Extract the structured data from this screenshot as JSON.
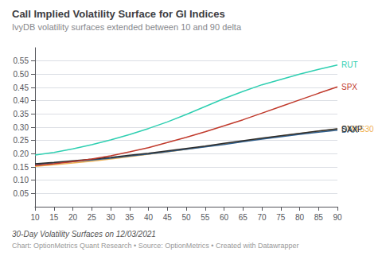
{
  "chart_data": {
    "type": "line",
    "title": "Call Implied Volatility Surface for GI Indices",
    "subtitle": "IvyDB volatility surfaces extended between 10 and 90 delta",
    "notes": [
      "30-Day Volatility Surfaces on 12/03/2021",
      "Chart: OptionMetrics Quant Research • Source: OptionMetrics • Created with Datawrapper"
    ],
    "x": [
      10,
      15,
      20,
      25,
      30,
      35,
      40,
      45,
      50,
      55,
      60,
      65,
      70,
      75,
      80,
      85,
      90
    ],
    "series": [
      {
        "name": "OMXS30",
        "color": "#f0b050",
        "values": [
          0.152,
          0.158,
          0.165,
          0.172,
          0.18,
          0.189,
          0.198,
          0.207,
          0.217,
          0.227,
          0.237,
          0.247,
          0.257,
          0.267,
          0.276,
          0.285,
          0.293
        ]
      },
      {
        "name": "DAX",
        "color": "#2e5e8e",
        "values": [
          0.16,
          0.165,
          0.17,
          0.176,
          0.183,
          0.191,
          0.199,
          0.208,
          0.217,
          0.226,
          0.235,
          0.245,
          0.255,
          0.264,
          0.273,
          0.281,
          0.289
        ]
      },
      {
        "name": "SXXP",
        "color": "#2d2d2d",
        "values": [
          0.162,
          0.167,
          0.173,
          0.179,
          0.186,
          0.194,
          0.202,
          0.211,
          0.22,
          0.229,
          0.239,
          0.249,
          0.259,
          0.268,
          0.277,
          0.286,
          0.294
        ]
      },
      {
        "name": "SPX",
        "color": "#c0392b",
        "values": [
          0.155,
          0.162,
          0.17,
          0.18,
          0.192,
          0.207,
          0.223,
          0.242,
          0.262,
          0.283,
          0.305,
          0.328,
          0.353,
          0.378,
          0.403,
          0.428,
          0.452
        ]
      },
      {
        "name": "RUT",
        "color": "#2ecfb1",
        "values": [
          0.195,
          0.205,
          0.218,
          0.234,
          0.252,
          0.272,
          0.295,
          0.32,
          0.348,
          0.378,
          0.408,
          0.435,
          0.46,
          0.48,
          0.5,
          0.518,
          0.535
        ]
      }
    ],
    "xlim": [
      10,
      90
    ],
    "xticks": [
      10,
      15,
      20,
      25,
      30,
      35,
      40,
      45,
      50,
      55,
      60,
      65,
      70,
      75,
      80,
      85,
      90
    ],
    "ylim": [
      0.0,
      0.6
    ],
    "yticks": [
      0.05,
      {
        "value": 0.1,
        "label": "0.10"
      },
      0.15,
      {
        "value": 0.2,
        "label": "0.20"
      },
      0.25,
      {
        "value": 0.3,
        "label": "0.30"
      },
      0.35,
      {
        "value": 0.4,
        "label": "0.40"
      },
      0.45,
      {
        "value": 0.5,
        "label": "0.50"
      },
      0.55
    ],
    "grid": true
  }
}
